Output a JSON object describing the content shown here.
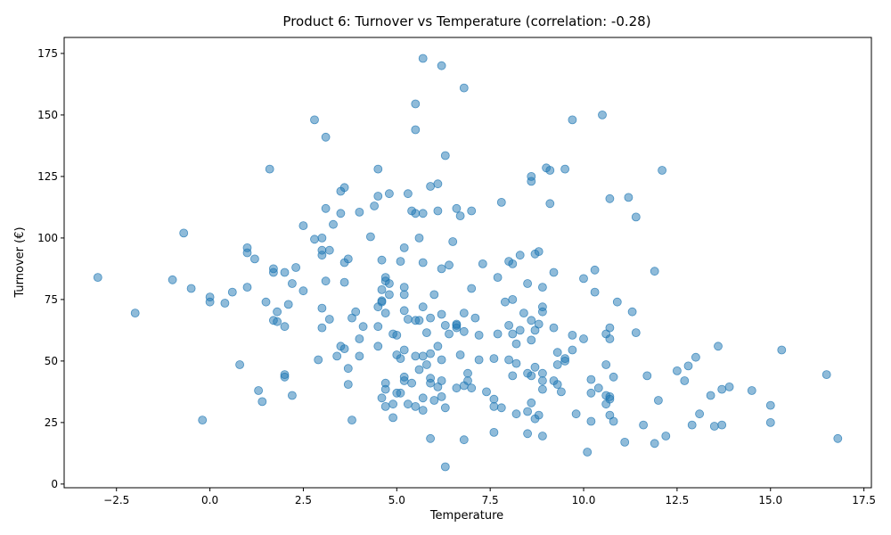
{
  "chart_data": {
    "type": "scatter",
    "title": "Product 6: Turnover vs Temperature (correlation: -0.28)",
    "xlabel": "Temperature",
    "ylabel": "Turnover (€)",
    "xlim": [
      -3.9,
      17.7
    ],
    "ylim": [
      -1.5,
      181.5
    ],
    "xticks": [
      -2.5,
      0.0,
      2.5,
      5.0,
      7.5,
      10.0,
      12.5,
      15.0,
      17.5
    ],
    "xtick_labels": [
      "−2.5",
      "0.0",
      "2.5",
      "5.0",
      "7.5",
      "10.0",
      "12.5",
      "15.0",
      "17.5"
    ],
    "yticks": [
      0,
      25,
      50,
      75,
      100,
      125,
      150,
      175
    ],
    "ytick_labels": [
      "0",
      "25",
      "50",
      "75",
      "100",
      "125",
      "150",
      "175"
    ],
    "grid": false,
    "legend": "none",
    "marker_color": "#1f77b4",
    "marker_alpha": 0.5,
    "points": [
      [
        -3.0,
        84
      ],
      [
        -2.0,
        69.5
      ],
      [
        -1.0,
        83
      ],
      [
        -0.7,
        102
      ],
      [
        -0.5,
        79.5
      ],
      [
        -0.2,
        26
      ],
      [
        0.0,
        76
      ],
      [
        0.0,
        74
      ],
      [
        0.4,
        73.5
      ],
      [
        0.6,
        78
      ],
      [
        0.8,
        48.5
      ],
      [
        1.0,
        96
      ],
      [
        1.0,
        94
      ],
      [
        1.0,
        80
      ],
      [
        1.2,
        91.5
      ],
      [
        1.3,
        38
      ],
      [
        1.4,
        33.5
      ],
      [
        1.5,
        74
      ],
      [
        1.6,
        128
      ],
      [
        1.7,
        87.5
      ],
      [
        1.7,
        86
      ],
      [
        1.7,
        66.5
      ],
      [
        1.8,
        66
      ],
      [
        1.8,
        70
      ],
      [
        2.0,
        86
      ],
      [
        2.0,
        64
      ],
      [
        2.0,
        44.5
      ],
      [
        2.0,
        43.5
      ],
      [
        2.1,
        73
      ],
      [
        2.2,
        81.5
      ],
      [
        2.2,
        36
      ],
      [
        2.3,
        88
      ],
      [
        2.5,
        78.5
      ],
      [
        2.5,
        105
      ],
      [
        2.8,
        99.5
      ],
      [
        2.8,
        148
      ],
      [
        2.9,
        50.5
      ],
      [
        3.0,
        71.5
      ],
      [
        3.0,
        63.5
      ],
      [
        3.0,
        95
      ],
      [
        3.0,
        93
      ],
      [
        3.0,
        100
      ],
      [
        3.1,
        82.5
      ],
      [
        3.1,
        112
      ],
      [
        3.1,
        141
      ],
      [
        3.2,
        67
      ],
      [
        3.2,
        95
      ],
      [
        3.3,
        105.5
      ],
      [
        3.4,
        52
      ],
      [
        3.5,
        119
      ],
      [
        3.5,
        110
      ],
      [
        3.5,
        56
      ],
      [
        3.6,
        90
      ],
      [
        3.6,
        55
      ],
      [
        3.6,
        120.5
      ],
      [
        3.7,
        91.5
      ],
      [
        3.7,
        47
      ],
      [
        3.7,
        40.5
      ],
      [
        3.6,
        82
      ],
      [
        3.8,
        67.5
      ],
      [
        3.8,
        26
      ],
      [
        3.9,
        70
      ],
      [
        4.0,
        59
      ],
      [
        4.0,
        52
      ],
      [
        4.0,
        110.5
      ],
      [
        4.1,
        64
      ],
      [
        4.3,
        100.5
      ],
      [
        4.4,
        113
      ],
      [
        4.5,
        128
      ],
      [
        4.5,
        117
      ],
      [
        4.5,
        72
      ],
      [
        4.5,
        64
      ],
      [
        4.5,
        56
      ],
      [
        4.6,
        91
      ],
      [
        4.6,
        79
      ],
      [
        4.6,
        74.5
      ],
      [
        4.6,
        74
      ],
      [
        4.6,
        35
      ],
      [
        4.7,
        84
      ],
      [
        4.7,
        82.5
      ],
      [
        4.7,
        69.5
      ],
      [
        4.7,
        41
      ],
      [
        4.7,
        38.5
      ],
      [
        4.7,
        31.5
      ],
      [
        4.8,
        118
      ],
      [
        4.8,
        77
      ],
      [
        4.8,
        81.5
      ],
      [
        4.9,
        61
      ],
      [
        4.9,
        32.5
      ],
      [
        4.9,
        27
      ],
      [
        5.0,
        60.5
      ],
      [
        5.0,
        52.5
      ],
      [
        5.0,
        37
      ],
      [
        5.1,
        90.5
      ],
      [
        5.1,
        51
      ],
      [
        5.1,
        37
      ],
      [
        5.2,
        96
      ],
      [
        5.2,
        80
      ],
      [
        5.2,
        77
      ],
      [
        5.2,
        70.5
      ],
      [
        5.2,
        54.5
      ],
      [
        5.2,
        43.5
      ],
      [
        5.2,
        42
      ],
      [
        5.3,
        118
      ],
      [
        5.3,
        67
      ],
      [
        5.3,
        32.5
      ],
      [
        5.4,
        111
      ],
      [
        5.4,
        41
      ],
      [
        5.5,
        110
      ],
      [
        5.5,
        154.5
      ],
      [
        5.5,
        144
      ],
      [
        5.5,
        66.5
      ],
      [
        5.5,
        52
      ],
      [
        5.5,
        31.5
      ],
      [
        5.6,
        100
      ],
      [
        5.6,
        66.5
      ],
      [
        5.6,
        46.5
      ],
      [
        5.7,
        173
      ],
      [
        5.7,
        110
      ],
      [
        5.7,
        90
      ],
      [
        5.7,
        72
      ],
      [
        5.7,
        52
      ],
      [
        5.7,
        35
      ],
      [
        5.7,
        30
      ],
      [
        5.8,
        61.5
      ],
      [
        5.8,
        48.5
      ],
      [
        5.9,
        121
      ],
      [
        5.9,
        67.5
      ],
      [
        5.9,
        53
      ],
      [
        5.9,
        43
      ],
      [
        5.9,
        41
      ],
      [
        5.9,
        18.5
      ],
      [
        6.0,
        77
      ],
      [
        6.0,
        34
      ],
      [
        6.1,
        111
      ],
      [
        6.1,
        122
      ],
      [
        6.1,
        56
      ],
      [
        6.1,
        39.5
      ],
      [
        6.2,
        170
      ],
      [
        6.2,
        87.5
      ],
      [
        6.2,
        69
      ],
      [
        6.2,
        50.5
      ],
      [
        6.2,
        42
      ],
      [
        6.2,
        35.5
      ],
      [
        6.3,
        133.5
      ],
      [
        6.3,
        64.5
      ],
      [
        6.3,
        31
      ],
      [
        6.3,
        7
      ],
      [
        6.4,
        61
      ],
      [
        6.4,
        89
      ],
      [
        6.5,
        98.5
      ],
      [
        6.6,
        112
      ],
      [
        6.6,
        64.5
      ],
      [
        6.6,
        63.5
      ],
      [
        6.6,
        39
      ],
      [
        6.6,
        65
      ],
      [
        6.7,
        109
      ],
      [
        6.7,
        52.5
      ],
      [
        6.8,
        161
      ],
      [
        6.8,
        69.5
      ],
      [
        6.8,
        62
      ],
      [
        6.8,
        40
      ],
      [
        6.8,
        18
      ],
      [
        6.9,
        45
      ],
      [
        6.9,
        42
      ],
      [
        7.0,
        111
      ],
      [
        7.0,
        79.5
      ],
      [
        7.0,
        39
      ],
      [
        7.1,
        67.5
      ],
      [
        7.2,
        60.5
      ],
      [
        7.2,
        50.5
      ],
      [
        7.3,
        89.5
      ],
      [
        7.4,
        37.5
      ],
      [
        7.6,
        51
      ],
      [
        7.6,
        34.5
      ],
      [
        7.6,
        31.5
      ],
      [
        7.6,
        21
      ],
      [
        7.7,
        61
      ],
      [
        7.7,
        84
      ],
      [
        7.8,
        114.5
      ],
      [
        7.8,
        31
      ],
      [
        7.9,
        74
      ],
      [
        8.0,
        90.5
      ],
      [
        8.0,
        64.5
      ],
      [
        8.0,
        50.5
      ],
      [
        8.1,
        89.5
      ],
      [
        8.1,
        75
      ],
      [
        8.1,
        61
      ],
      [
        8.1,
        44
      ],
      [
        8.2,
        57
      ],
      [
        8.3,
        93
      ],
      [
        8.2,
        49
      ],
      [
        8.2,
        28.5
      ],
      [
        8.3,
        62.5
      ],
      [
        8.4,
        69.5
      ],
      [
        8.5,
        81.5
      ],
      [
        8.5,
        45
      ],
      [
        8.5,
        29.5
      ],
      [
        8.5,
        20.5
      ],
      [
        8.6,
        125
      ],
      [
        8.6,
        123
      ],
      [
        8.6,
        66.5
      ],
      [
        8.6,
        58.5
      ],
      [
        8.6,
        44
      ],
      [
        8.6,
        33
      ],
      [
        8.7,
        93.5
      ],
      [
        8.7,
        62.5
      ],
      [
        8.7,
        47.5
      ],
      [
        8.7,
        26.5
      ],
      [
        8.8,
        94.5
      ],
      [
        8.8,
        65
      ],
      [
        8.8,
        28
      ],
      [
        8.9,
        80
      ],
      [
        8.9,
        72
      ],
      [
        8.9,
        70
      ],
      [
        8.9,
        45
      ],
      [
        8.9,
        42
      ],
      [
        8.9,
        38.5
      ],
      [
        8.9,
        19.5
      ],
      [
        9.0,
        128.5
      ],
      [
        9.1,
        127.5
      ],
      [
        9.1,
        114
      ],
      [
        9.2,
        86
      ],
      [
        9.2,
        63.5
      ],
      [
        9.2,
        42
      ],
      [
        9.3,
        53.5
      ],
      [
        9.3,
        48.5
      ],
      [
        9.3,
        40.5
      ],
      [
        9.4,
        37.5
      ],
      [
        9.5,
        128
      ],
      [
        9.5,
        51
      ],
      [
        9.5,
        50
      ],
      [
        9.7,
        148
      ],
      [
        9.7,
        54.5
      ],
      [
        9.7,
        60.5
      ],
      [
        9.8,
        28.5
      ],
      [
        10.0,
        59
      ],
      [
        10.0,
        83.5
      ],
      [
        10.1,
        13
      ],
      [
        10.2,
        42.5
      ],
      [
        10.2,
        37
      ],
      [
        10.2,
        25.5
      ],
      [
        10.3,
        87
      ],
      [
        10.3,
        78
      ],
      [
        10.4,
        39
      ],
      [
        10.5,
        150
      ],
      [
        10.6,
        61
      ],
      [
        10.6,
        48.5
      ],
      [
        10.6,
        36
      ],
      [
        10.6,
        32.5
      ],
      [
        10.7,
        63.5
      ],
      [
        10.7,
        59
      ],
      [
        10.7,
        35.5
      ],
      [
        10.7,
        34.5
      ],
      [
        10.7,
        28
      ],
      [
        10.7,
        116
      ],
      [
        10.8,
        43.5
      ],
      [
        10.8,
        25.5
      ],
      [
        10.9,
        74
      ],
      [
        11.1,
        17
      ],
      [
        11.2,
        116.5
      ],
      [
        11.3,
        70
      ],
      [
        11.4,
        108.5
      ],
      [
        11.4,
        61.5
      ],
      [
        11.6,
        24
      ],
      [
        11.7,
        44
      ],
      [
        11.9,
        86.5
      ],
      [
        11.9,
        16.5
      ],
      [
        12.0,
        34
      ],
      [
        12.1,
        127.5
      ],
      [
        12.2,
        19.5
      ],
      [
        12.5,
        46
      ],
      [
        12.7,
        42
      ],
      [
        12.8,
        48
      ],
      [
        12.9,
        24
      ],
      [
        13.0,
        51.5
      ],
      [
        13.1,
        28.5
      ],
      [
        13.4,
        36
      ],
      [
        13.5,
        23.5
      ],
      [
        13.6,
        56
      ],
      [
        13.7,
        38.5
      ],
      [
        13.7,
        24
      ],
      [
        13.9,
        39.5
      ],
      [
        14.5,
        38
      ],
      [
        15.0,
        32
      ],
      [
        15.0,
        25
      ],
      [
        15.3,
        54.5
      ],
      [
        16.5,
        44.5
      ],
      [
        16.8,
        18.5
      ]
    ]
  }
}
